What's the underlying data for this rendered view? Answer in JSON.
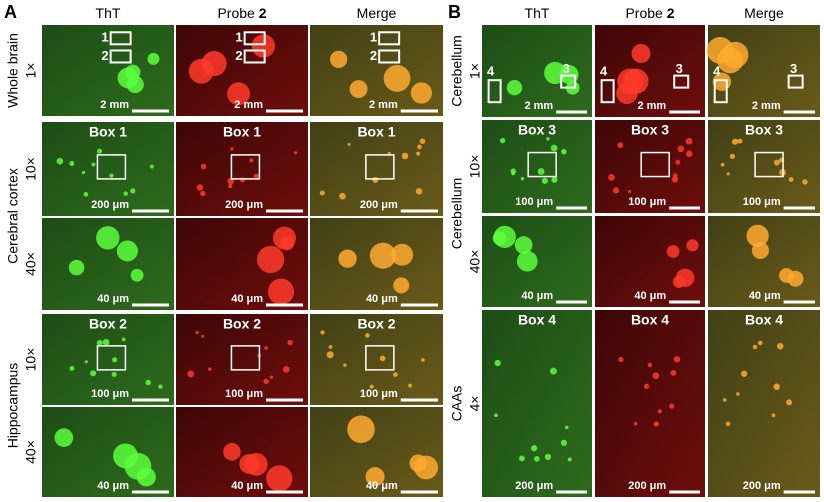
{
  "panels": [
    {
      "letter": "A",
      "columns": [
        {
          "label": "ThT"
        },
        {
          "label": "Probe",
          "number": "2"
        },
        {
          "label": "Merge"
        }
      ],
      "groups": [
        {
          "label": "Whole brain",
          "rows": [
            {
              "magnification": "1×",
              "markers": [
                "1",
                "2"
              ],
              "scale_bar": "2 mm"
            }
          ]
        },
        {
          "label": "Cerebral cortex",
          "rows": [
            {
              "magnification": "10×",
              "title": "Box 1",
              "scale_bar": "200 μm"
            },
            {
              "magnification": "40×",
              "scale_bar": "40 μm"
            }
          ]
        },
        {
          "label": "Hippocampus",
          "rows": [
            {
              "magnification": "10×",
              "title": "Box 2",
              "scale_bar": "100 μm"
            },
            {
              "magnification": "40×",
              "scale_bar": "40 μm"
            }
          ]
        }
      ]
    },
    {
      "letter": "B",
      "columns": [
        {
          "label": "ThT"
        },
        {
          "label": "Probe",
          "number": "2"
        },
        {
          "label": "Merge"
        }
      ],
      "groups": [
        {
          "label": "Cerebellum",
          "rows": [
            {
              "magnification": "1×",
              "markers": [
                "3",
                "4"
              ],
              "scale_bar": "2 mm"
            }
          ]
        },
        {
          "label": "Cerebellum",
          "rows": [
            {
              "magnification": "10×",
              "title": "Box 3",
              "scale_bar": "100 μm"
            },
            {
              "magnification": "40×",
              "scale_bar": "40 μm"
            }
          ]
        },
        {
          "label": "CAAs",
          "rows": [
            {
              "magnification": "4×",
              "title": "Box 4",
              "scale_bar": "200 μm"
            }
          ]
        }
      ]
    }
  ]
}
